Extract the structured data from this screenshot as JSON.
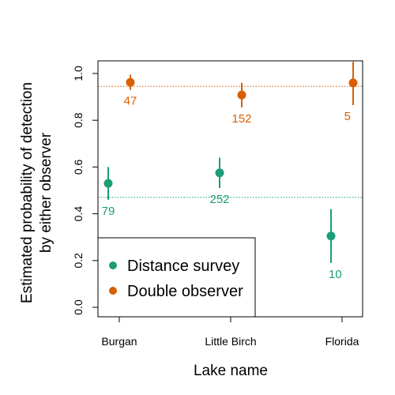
{
  "chart_data": {
    "type": "scatter",
    "title": "",
    "xlabel": "Lake name",
    "ylabel_lines": [
      "Estimated probability of detection",
      "by either observer"
    ],
    "categories": [
      "Burgan",
      "Little Birch",
      "Florida"
    ],
    "ylim": [
      0,
      1
    ],
    "yticks": [
      "0.0",
      "0.2",
      "0.4",
      "0.6",
      "0.8",
      "1.0"
    ],
    "grid": false,
    "legend_position": "bottom-left",
    "series": [
      {
        "name": "Distance survey",
        "color": "#1b9e77",
        "reference_line": 0.47,
        "points": [
          {
            "category": "Burgan",
            "value": 0.53,
            "low": 0.46,
            "high": 0.6,
            "n": "79"
          },
          {
            "category": "Little Birch",
            "value": 0.575,
            "low": 0.51,
            "high": 0.64,
            "n": "252"
          },
          {
            "category": "Florida",
            "value": 0.305,
            "low": 0.19,
            "high": 0.42,
            "n": "10"
          }
        ]
      },
      {
        "name": "Double observer",
        "color": "#d95f02",
        "reference_line": 0.945,
        "points": [
          {
            "category": "Burgan",
            "value": 0.962,
            "low": 0.93,
            "high": 0.995,
            "n": "47"
          },
          {
            "category": "Little Birch",
            "value": 0.908,
            "low": 0.855,
            "high": 0.96,
            "n": "152"
          },
          {
            "category": "Florida",
            "value": 0.96,
            "low": 0.865,
            "high": 1.05,
            "n": "5"
          }
        ]
      }
    ]
  }
}
